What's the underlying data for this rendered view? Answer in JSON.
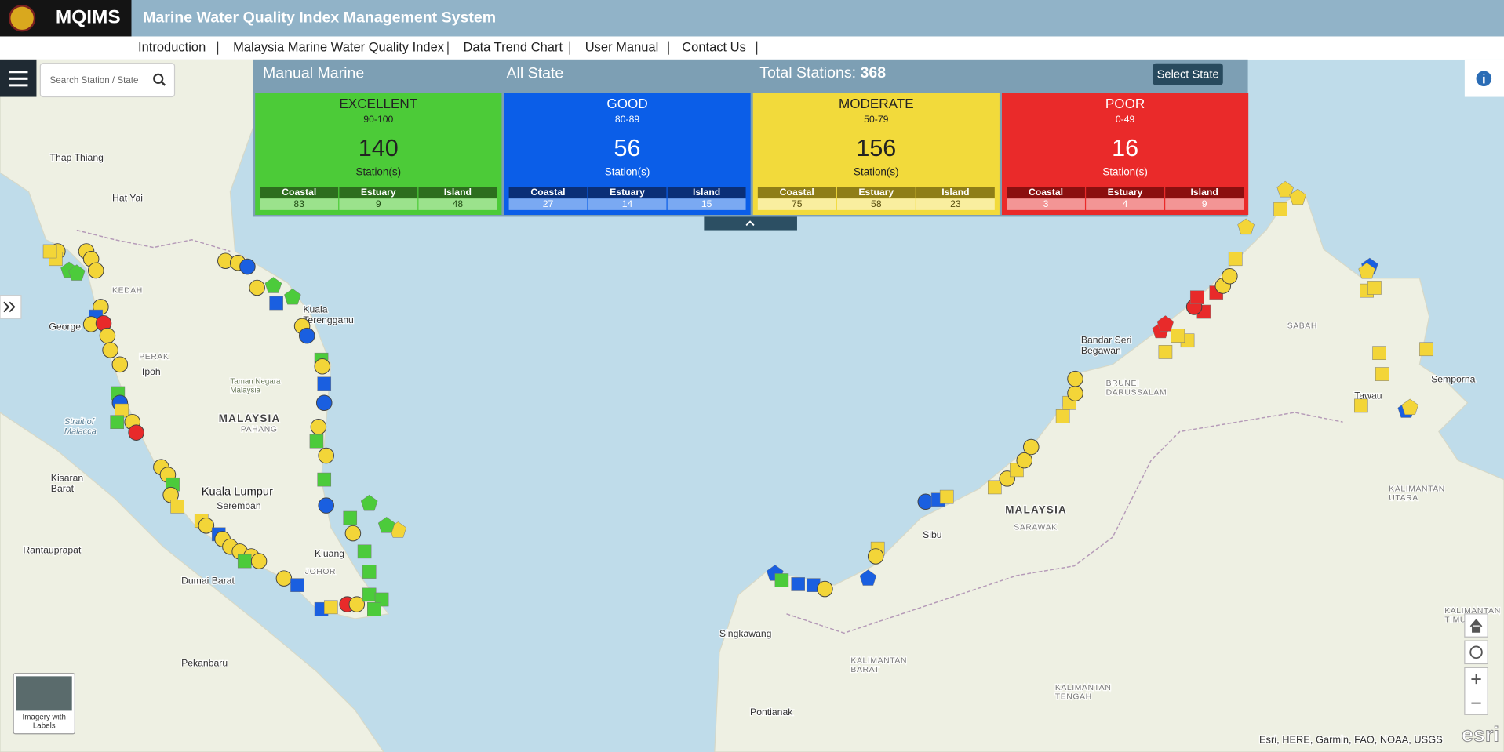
{
  "header": {
    "logo_text": "MQIMS",
    "title": "Marine Water Quality Index Management System"
  },
  "nav": [
    "Introduction",
    "Malaysia Marine Water Quality Index",
    "Data Trend Chart",
    "User Manual",
    "Contact Us"
  ],
  "search": {
    "placeholder": "Search Station / State"
  },
  "panel": {
    "program": "Manual Marine",
    "region": "All State",
    "total_label": "Total Stations:",
    "total": 368,
    "button": "Select State",
    "classes": [
      {
        "name": "EXCELLENT",
        "range": "90-100",
        "count": 140,
        "unit": "Station(s)",
        "color": "#4ccb38",
        "text_color": "#222222",
        "breakdown": [
          {
            "label": "Coastal",
            "value": 83
          },
          {
            "label": "Estuary",
            "value": 9
          },
          {
            "label": "Island",
            "value": 48
          }
        ]
      },
      {
        "name": "GOOD",
        "range": "80-89",
        "count": 56,
        "unit": "Station(s)",
        "color": "#0b5ee8",
        "text_color": "#ffffff",
        "breakdown": [
          {
            "label": "Coastal",
            "value": 27
          },
          {
            "label": "Estuary",
            "value": 14
          },
          {
            "label": "Island",
            "value": 15
          }
        ]
      },
      {
        "name": "MODERATE",
        "range": "50-79",
        "count": 156,
        "unit": "Station(s)",
        "color": "#f2da3b",
        "text_color": "#222222",
        "breakdown": [
          {
            "label": "Coastal",
            "value": 75
          },
          {
            "label": "Estuary",
            "value": 58
          },
          {
            "label": "Island",
            "value": 23
          }
        ]
      },
      {
        "name": "POOR",
        "range": "0-49",
        "count": 16,
        "unit": "Station(s)",
        "color": "#ea2a2a",
        "text_color": "#ffffff",
        "breakdown": [
          {
            "label": "Coastal",
            "value": 3
          },
          {
            "label": "Estuary",
            "value": 4
          },
          {
            "label": "Island",
            "value": 9
          }
        ]
      }
    ]
  },
  "map": {
    "labels": [
      [
        "Thap Thiang"
      ],
      [
        "Hat Yai"
      ],
      [
        "George"
      ],
      [
        "Ipoh"
      ],
      [
        "MALAYSIA"
      ],
      [
        "Kuala",
        "Terengganu"
      ],
      [
        "Kuala Lumpur"
      ],
      [
        "Seremban"
      ],
      [
        "Kluang"
      ],
      [
        "Dumai Barat"
      ],
      [
        "Rantauprapat"
      ],
      [
        "Pekanbaru"
      ],
      [
        "Kisaran",
        "Barat"
      ],
      [
        "Strait of",
        "Malacca"
      ],
      [
        "KEDAH"
      ],
      [
        "PERAK"
      ],
      [
        "PAHANG"
      ],
      [
        "JOHOR"
      ],
      [
        "Bandar Seri",
        "Begawan"
      ],
      [
        "BRUNEI",
        "DARUSSALAM"
      ],
      [
        "SABAH"
      ],
      [
        "Semporna"
      ],
      [
        "Tawau"
      ],
      [
        "MALAYSIA"
      ],
      [
        "SARAWAK"
      ],
      [
        "Sibu"
      ],
      [
        "Singkawang"
      ],
      [
        "Pontianak"
      ],
      [
        "KALIMANTAN",
        "BARAT"
      ],
      [
        "KALIMANTAN",
        "UTARA"
      ],
      [
        "KALIMANTAN",
        "TIMUR"
      ],
      [
        "KALIMANTAN",
        "TENGAH"
      ],
      [
        "Taman Negara",
        "Malaysia"
      ]
    ],
    "basemap_label": [
      "Imagery with",
      "Labels"
    ],
    "attribution": "Esri, HERE, Garmin, FAO, NOAA, USGS",
    "logo": "esri"
  }
}
